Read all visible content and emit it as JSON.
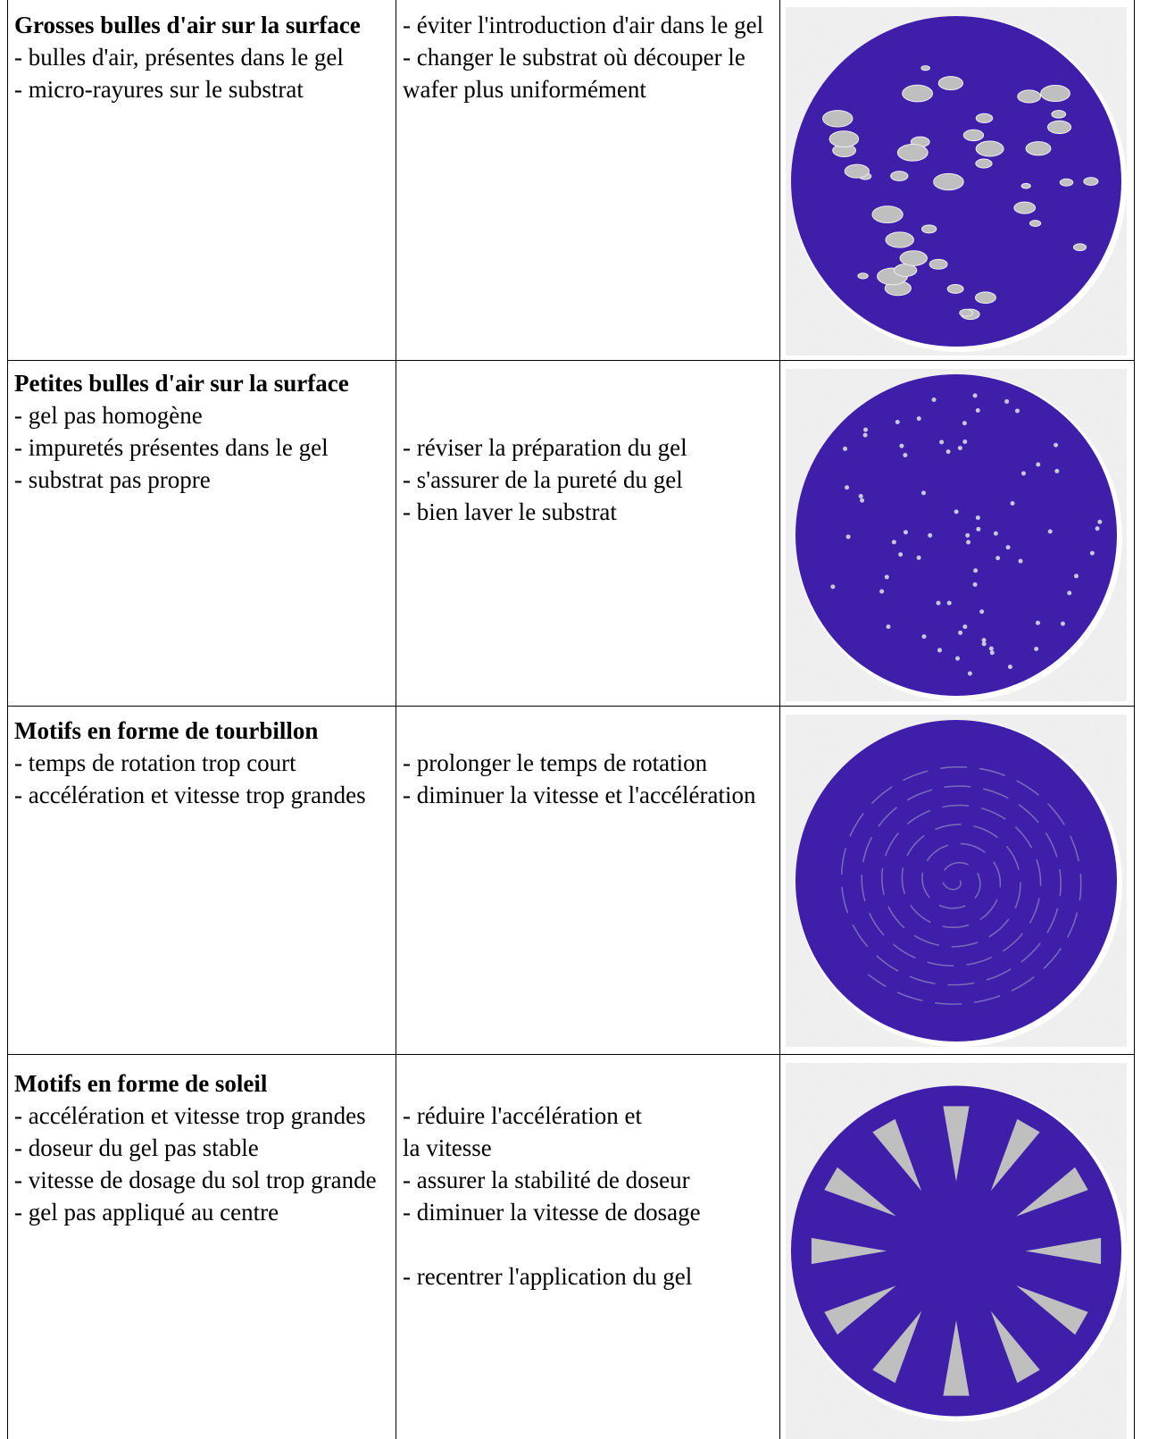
{
  "table": {
    "rows": [
      {
        "title": "Grosses bulles d'air sur la surface",
        "causes": [
          "- bulles d'air, présentes dans le gel",
          "- micro-rayures sur le substrat"
        ],
        "remedies": [
          "- éviter l'introduction d'air dans le gel",
          "- changer le substrat où découper le wafer plus uniformément"
        ]
      },
      {
        "title": "Petites bulles d'air sur la surface",
        "causes": [
          "- gel pas homogène",
          "- impuretés présentes dans le gel",
          "- substrat pas propre"
        ],
        "remedies": [
          "- réviser la préparation du gel",
          "- s'assurer de la pureté du gel",
          "- bien laver le substrat"
        ]
      },
      {
        "title": "Motifs en forme  de tourbillon",
        "causes": [
          "- temps de rotation trop court",
          "- accélération et vitesse trop grandes"
        ],
        "remedies": [
          "- prolonger le temps de rotation",
          "- diminuer la vitesse et l'accélération"
        ]
      },
      {
        "title": "Motifs en forme de soleil",
        "causes": [
          "- accélération et vitesse trop grandes",
          "- doseur du gel pas stable",
          "- vitesse de dosage du sol trop grande",
          "- gel pas appliqué au centre"
        ],
        "remedies": [
          "- réduire l'accélération et",
          "la vitesse",
          "- assurer la stabilité de doseur",
          "- diminuer la vitesse de dosage",
          "- recentrer l'application du gel"
        ]
      }
    ]
  }
}
